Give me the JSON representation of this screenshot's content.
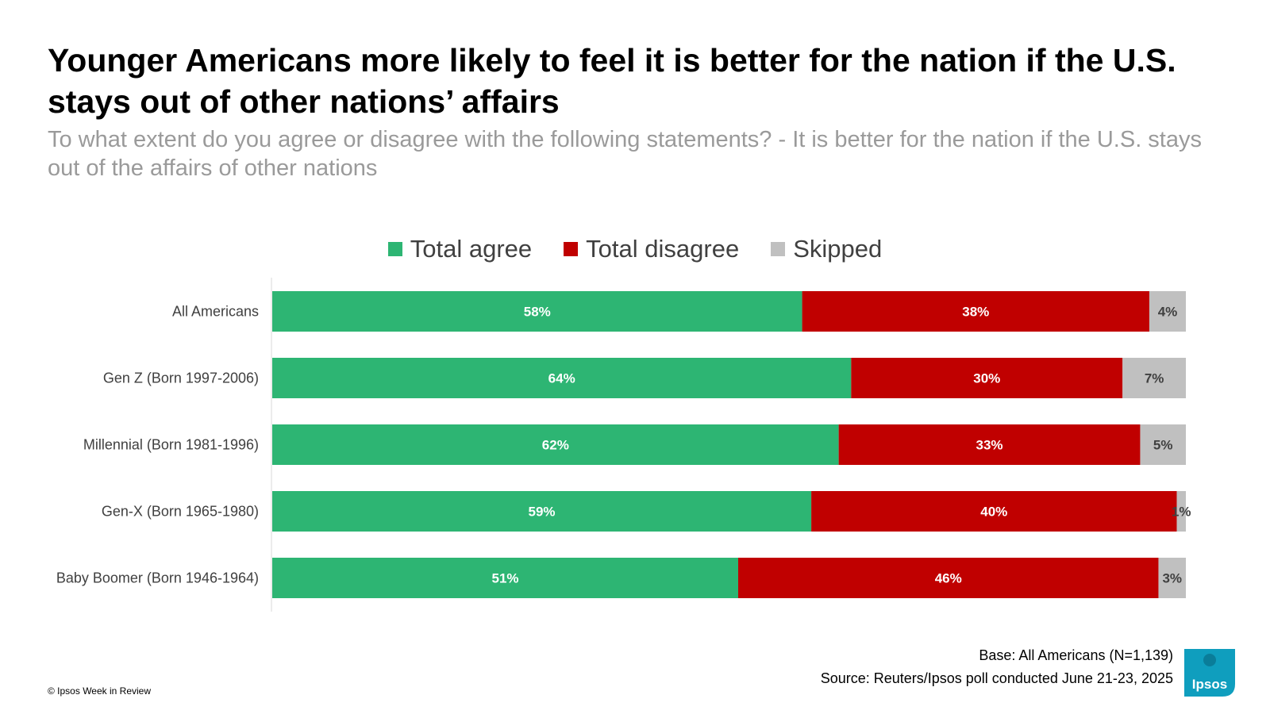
{
  "title": "Younger Americans more likely to feel it is better for the nation if the U.S. stays out of other nations’ affairs",
  "subtitle": "To what extent do you agree or disagree with the following statements? - It is better for the nation if the U.S. stays out of the affairs of other nations",
  "footer": {
    "base": "Base: All Americans (N=1,139)",
    "source": "Source: Reuters/Ipsos poll conducted June 21-23, 2025",
    "copyright": "© Ipsos Week in Review",
    "logo_text": "Ipsos"
  },
  "colors": {
    "agree": "#2db573",
    "disagree": "#c00000",
    "skipped": "#c0c0c0",
    "logo": "#0f9ebe"
  },
  "chart_data": {
    "type": "bar",
    "orientation": "horizontal",
    "stacked": true,
    "categories": [
      "All Americans",
      "Gen Z (Born 1997-2006)",
      "Millennial (Born 1981-1996)",
      "Gen-X (Born 1965-1980)",
      "Baby Boomer (Born 1946-1964)"
    ],
    "series": [
      {
        "name": "Total agree",
        "values": [
          58,
          64,
          62,
          59,
          51
        ],
        "labels": [
          "58%",
          "64%",
          "62%",
          "59%",
          "51%"
        ]
      },
      {
        "name": "Total disagree",
        "values": [
          38,
          30,
          33,
          40,
          46
        ],
        "labels": [
          "38%",
          "30%",
          "33%",
          "40%",
          "46%"
        ]
      },
      {
        "name": "Skipped",
        "values": [
          4,
          7,
          5,
          1,
          3
        ],
        "labels": [
          "4%",
          "7%",
          "5%",
          "1%",
          "3%"
        ]
      }
    ],
    "legend_position": "top",
    "grid": false
  }
}
